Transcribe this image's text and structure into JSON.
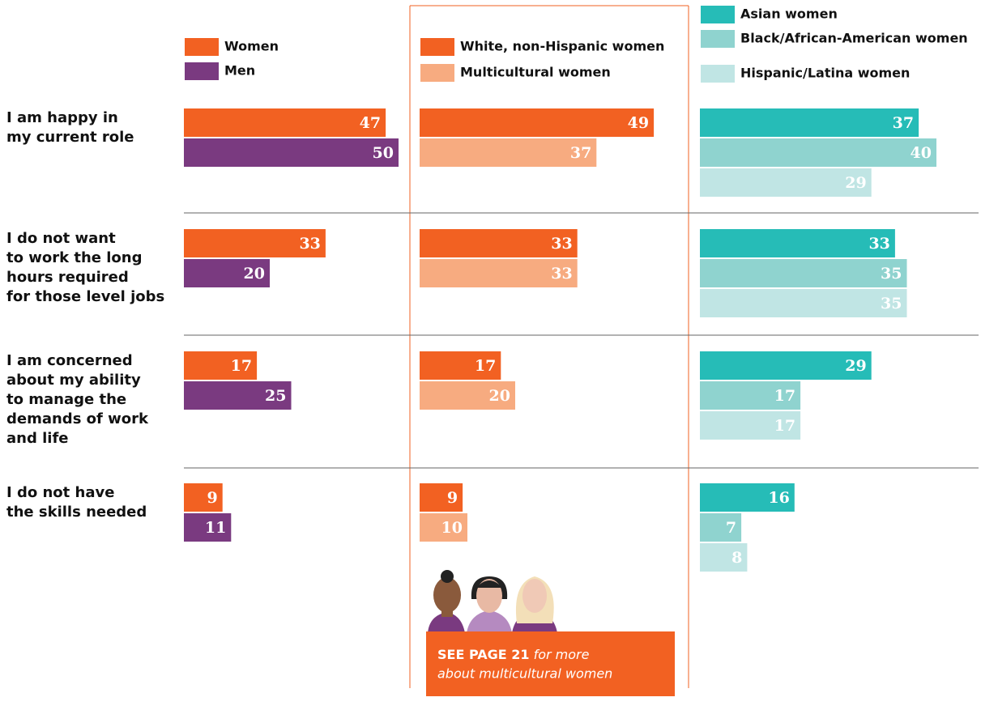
{
  "chart_data": {
    "type": "bar",
    "categories": [
      [
        "I am happy in",
        "my current role"
      ],
      [
        "I do not want",
        "to work the long",
        "hours required",
        "for those level jobs"
      ],
      [
        "I am concerned",
        "about my ability",
        "to manage the",
        "demands of work",
        "and life"
      ],
      [
        "I do not have",
        "the skills needed"
      ]
    ],
    "groups": [
      {
        "series": [
          {
            "name": "Women",
            "color": "#f26122",
            "values": [
              47,
              33,
              17,
              9
            ]
          },
          {
            "name": "Men",
            "color": "#7a3a80",
            "values": [
              50,
              20,
              25,
              11
            ]
          }
        ]
      },
      {
        "series": [
          {
            "name": "White, non-Hispanic women",
            "color": "#f26122",
            "values": [
              49,
              33,
              17,
              9
            ]
          },
          {
            "name": "Multicultural women",
            "color": "#f7ab80",
            "values": [
              37,
              33,
              20,
              10
            ]
          }
        ]
      },
      {
        "series": [
          {
            "name": "Asian women",
            "color": "#26bcb7",
            "values": [
              37,
              33,
              29,
              16
            ]
          },
          {
            "name": "Black/African-American women",
            "color": "#8fd3cf",
            "values": [
              40,
              35,
              17,
              7
            ]
          },
          {
            "name": "Hispanic/Latina women",
            "color": "#c0e5e4",
            "values": [
              29,
              35,
              17,
              8
            ]
          }
        ]
      }
    ],
    "callout": {
      "lead": "SEE PAGE 21",
      "line1": "for more",
      "line2": "about multicultural women"
    }
  }
}
